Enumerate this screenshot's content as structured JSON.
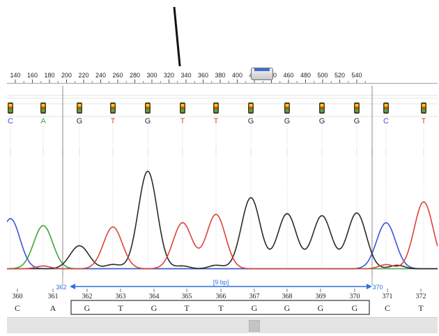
{
  "ruler": {
    "ticks": [
      "140",
      "160",
      "180",
      "200",
      "220",
      "240",
      "260",
      "280",
      "300",
      "320",
      "340",
      "360",
      "380",
      "400",
      "420",
      "440",
      "460",
      "480",
      "500",
      "520",
      "540"
    ]
  },
  "base_calls": [
    "C",
    "A",
    "G",
    "T",
    "G",
    "T",
    "T",
    "G",
    "G",
    "G",
    "G",
    "C",
    "T"
  ],
  "selection": {
    "start_label": "362",
    "end_label": "370",
    "length_label": "[9 bp]"
  },
  "positions": [
    "360",
    "361",
    "362",
    "363",
    "364",
    "365",
    "366",
    "367",
    "368",
    "369",
    "370",
    "371",
    "372"
  ],
  "sequence": [
    "C",
    "A",
    "G",
    "T",
    "G",
    "T",
    "T",
    "G",
    "G",
    "G",
    "G",
    "C",
    "T"
  ],
  "colors": {
    "A": "#3da63d",
    "C": "#3a55d9",
    "G": "#2a2a2a",
    "T": "#d9443a",
    "selection": "#2f6fe0"
  },
  "icons": {
    "quality_marker": "quality-bar-icon",
    "annotation_arrow": "down-arrow-icon"
  }
}
